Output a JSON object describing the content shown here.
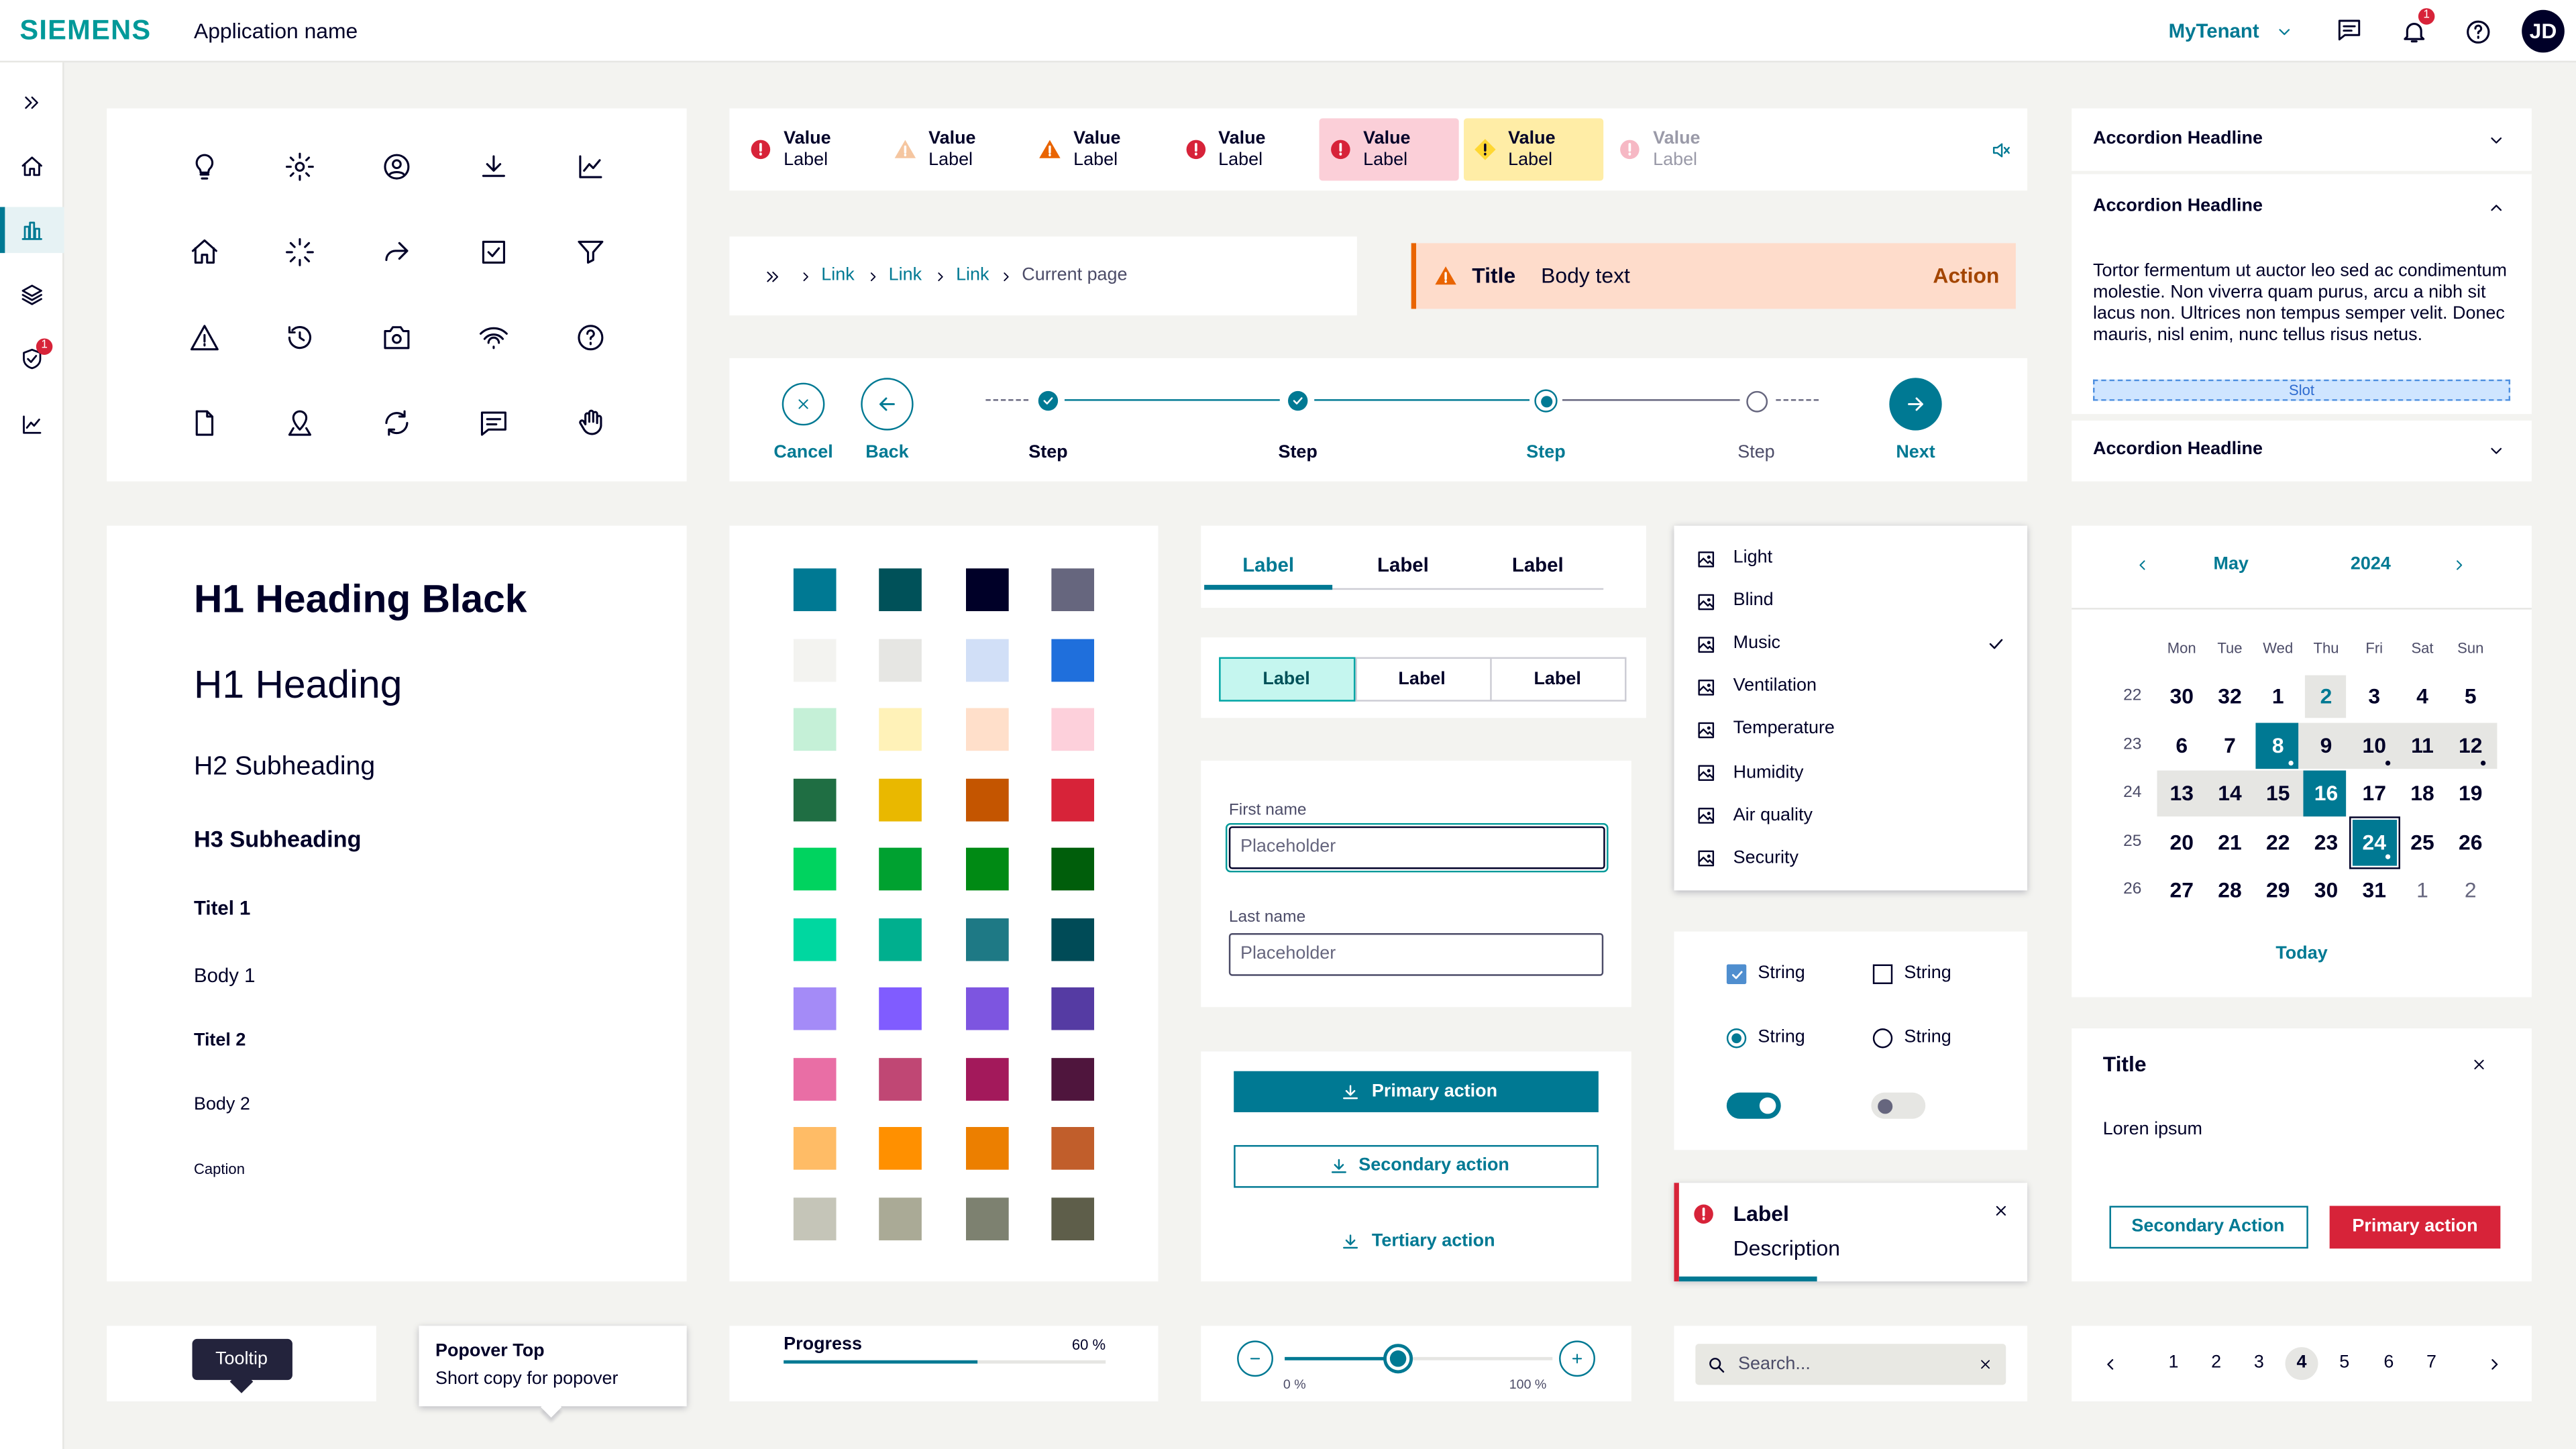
{
  "header": {
    "brand": "SIEMENS",
    "app_name": "Application name",
    "tenant": "MyTenant",
    "notification_count": "1",
    "avatar": "JD"
  },
  "sidebar": {
    "badge": "1"
  },
  "status_bar": [
    {
      "value": "Value",
      "label": "Label"
    },
    {
      "value": "Value",
      "label": "Label"
    },
    {
      "value": "Value",
      "label": "Label"
    },
    {
      "value": "Value",
      "label": "Label"
    },
    {
      "value": "Value",
      "label": "Label"
    },
    {
      "value": "Value",
      "label": "Label"
    },
    {
      "value": "Value",
      "label": "Label"
    }
  ],
  "breadcrumb": {
    "links": [
      "Link",
      "Link",
      "Link"
    ],
    "current": "Current page"
  },
  "alert": {
    "title": "Title",
    "body": "Body text",
    "action": "Action"
  },
  "wizard": {
    "cancel": "Cancel",
    "back": "Back",
    "steps": [
      "Step",
      "Step",
      "Step",
      "Step"
    ],
    "next": "Next"
  },
  "accordion": {
    "headlines": [
      "Accordion Headline",
      "Accordion Headline",
      "Accordion Headline"
    ],
    "body": "Tortor fermentum ut auctor leo sed ac condimentum molestie. Non viverra quam purus, arcu a nibh sit lacus non. Ultrices non tempus semper velit. Donec mauris, nisl enim, nunc tellus risus netus.",
    "slot": "Slot"
  },
  "typography": [
    "H1 Heading Black",
    "H1 Heading",
    "H2 Subheading",
    "H3 Subheading",
    "Titel 1",
    "Body 1",
    "Titel 2",
    "Body 2",
    "Caption"
  ],
  "swatches": [
    "#007993",
    "#005159",
    "#000028",
    "#66667e",
    "#f3f3f0",
    "#e6e6e3",
    "#d1dff7",
    "#1f6fdc",
    "#c5f0d7",
    "#fff2b8",
    "#ffdfca",
    "#fdd0db",
    "#1f6e43",
    "#e9b800",
    "#c45500",
    "#d72339",
    "#00d35f",
    "#00a130",
    "#008a14",
    "#005e0b",
    "#00d7a0",
    "#00af8e",
    "#1e7985",
    "#004b57",
    "#a48bf7",
    "#805cff",
    "#7d55e0",
    "#553ba3",
    "#e96ea5",
    "#c04774",
    "#a3195b",
    "#4f153d",
    "#ffbc66",
    "#ff9000",
    "#ec7f00",
    "#c15e2b",
    "#c5c5b8",
    "#aaaa96",
    "#7d8170",
    "#5e5e4a"
  ],
  "tabs": [
    "Label",
    "Label",
    "Label"
  ],
  "segmented": [
    "Label",
    "Label",
    "Label"
  ],
  "form": {
    "first_label": "First name",
    "first_placeholder": "Placeholder",
    "last_label": "Last name",
    "last_placeholder": "Placeholder"
  },
  "buttons": {
    "primary": "Primary action",
    "secondary": "Secondary action",
    "tertiary": "Tertiary action"
  },
  "menu": [
    "Light",
    "Blind",
    "Music",
    "Ventilation",
    "Temperature",
    "Humidity",
    "Air quality",
    "Security"
  ],
  "options": {
    "checkboxes": [
      "String",
      "String"
    ],
    "radios": [
      "String",
      "String"
    ]
  },
  "toast": {
    "label": "Label",
    "description": "Description"
  },
  "calendar": {
    "month": "May",
    "year": "2024",
    "weekdays": [
      "Mon",
      "Tue",
      "Wed",
      "Thu",
      "Fri",
      "Sat",
      "Sun"
    ],
    "weeks": [
      {
        "number": "22",
        "days": [
          "30",
          "32",
          "1",
          "2",
          "3",
          "4",
          "5"
        ]
      },
      {
        "number": "23",
        "days": [
          "6",
          "7",
          "8",
          "9",
          "10",
          "11",
          "12"
        ]
      },
      {
        "number": "24",
        "days": [
          "13",
          "14",
          "15",
          "16",
          "17",
          "18",
          "19"
        ]
      },
      {
        "number": "25",
        "days": [
          "20",
          "21",
          "22",
          "23",
          "24",
          "25",
          "26"
        ]
      },
      {
        "number": "26",
        "days": [
          "27",
          "28",
          "29",
          "30",
          "31",
          "1",
          "2"
        ]
      }
    ],
    "today": "Today"
  },
  "modal": {
    "title": "Title",
    "body": "Loren ipsum",
    "secondary": "Secondary Action",
    "primary": "Primary action"
  },
  "tooltip": "Tooltip",
  "popover": {
    "title": "Popover Top",
    "body": "Short copy for popover"
  },
  "progress": {
    "label": "Progress",
    "value_label": "60 %"
  },
  "slider": {
    "min_label": "0 %",
    "max_label": "100 %"
  },
  "search": {
    "placeholder": "Search..."
  },
  "pagination": [
    "1",
    "2",
    "3",
    "4",
    "5",
    "6",
    "7"
  ]
}
